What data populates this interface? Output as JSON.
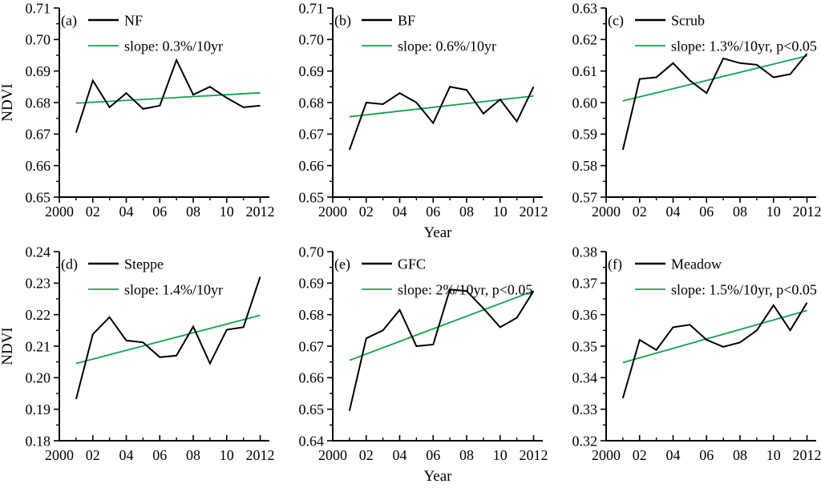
{
  "figure": {
    "ylabel": "NDVI",
    "xlabel": "Year",
    "x_years": [
      2001,
      2002,
      2003,
      2004,
      2005,
      2006,
      2007,
      2008,
      2009,
      2010,
      2011,
      2012
    ],
    "xlim": [
      2000,
      2012.55
    ],
    "xtick_values": [
      2000,
      2002,
      2004,
      2006,
      2008,
      2010,
      2012
    ],
    "xtick_labels": [
      "2000",
      "02",
      "04",
      "06",
      "08",
      "10",
      "2012"
    ],
    "x_minor_ticks": [
      2001,
      2003,
      2005,
      2007,
      2009,
      2011
    ],
    "colors": {
      "series_line": "#000000",
      "trend_line": "#12a24e",
      "axis": "#000000",
      "background": "#ffffff"
    }
  },
  "chart_data": [
    {
      "type": "line",
      "panel_label": "(a)",
      "series_name": "NF",
      "slope_label": "slope: 0.3%/10yr",
      "x": [
        2001,
        2002,
        2003,
        2004,
        2005,
        2006,
        2007,
        2008,
        2009,
        2010,
        2011,
        2012
      ],
      "values": [
        0.6705,
        0.687,
        0.6785,
        0.683,
        0.678,
        0.679,
        0.6935,
        0.6825,
        0.685,
        0.6815,
        0.6785,
        0.679
      ],
      "trend": {
        "x_start": 2001,
        "x_end": 2012,
        "y_start": 0.6798,
        "y_end": 0.6831
      },
      "ylim": [
        0.65,
        0.71
      ],
      "ytick_step": 0.01,
      "ytick_labels": [
        "0.65",
        "0.66",
        "0.67",
        "0.68",
        "0.69",
        "0.70",
        "0.71"
      ]
    },
    {
      "type": "line",
      "panel_label": "(b)",
      "series_name": "BF",
      "slope_label": "slope: 0.6%/10yr",
      "x": [
        2001,
        2002,
        2003,
        2004,
        2005,
        2006,
        2007,
        2008,
        2009,
        2010,
        2011,
        2012
      ],
      "values": [
        0.665,
        0.68,
        0.6795,
        0.683,
        0.68,
        0.6735,
        0.685,
        0.684,
        0.6765,
        0.681,
        0.674,
        0.685
      ],
      "trend": {
        "x_start": 2001,
        "x_end": 2012,
        "y_start": 0.6755,
        "y_end": 0.6821
      },
      "ylim": [
        0.65,
        0.71
      ],
      "ytick_step": 0.01,
      "ytick_labels": [
        "0.65",
        "0.66",
        "0.67",
        "0.68",
        "0.69",
        "0.70",
        "0.71"
      ]
    },
    {
      "type": "line",
      "panel_label": "(c)",
      "series_name": "Scrub",
      "slope_label": "slope: 1.3%/10yr, p<0.05",
      "x": [
        2001,
        2002,
        2003,
        2004,
        2005,
        2006,
        2007,
        2008,
        2009,
        2010,
        2011,
        2012
      ],
      "values": [
        0.585,
        0.6075,
        0.608,
        0.6125,
        0.607,
        0.603,
        0.614,
        0.6125,
        0.612,
        0.608,
        0.609,
        0.6155
      ],
      "trend": {
        "x_start": 2001,
        "x_end": 2012,
        "y_start": 0.6005,
        "y_end": 0.6148
      },
      "ylim": [
        0.57,
        0.63
      ],
      "ytick_step": 0.01,
      "ytick_labels": [
        "0.57",
        "0.58",
        "0.59",
        "0.60",
        "0.61",
        "0.62",
        "0.63"
      ]
    },
    {
      "type": "line",
      "panel_label": "(d)",
      "series_name": "Steppe",
      "slope_label": "slope: 1.4%/10yr",
      "x": [
        2001,
        2002,
        2003,
        2004,
        2005,
        2006,
        2007,
        2008,
        2009,
        2010,
        2011,
        2012
      ],
      "values": [
        0.1932,
        0.2138,
        0.2192,
        0.2118,
        0.2112,
        0.2065,
        0.207,
        0.2162,
        0.2045,
        0.2152,
        0.216,
        0.232
      ],
      "trend": {
        "x_start": 2001,
        "x_end": 2012,
        "y_start": 0.2045,
        "y_end": 0.2198
      },
      "ylim": [
        0.18,
        0.24
      ],
      "ytick_step": 0.01,
      "ytick_labels": [
        "0.18",
        "0.19",
        "0.20",
        "0.21",
        "0.22",
        "0.23",
        "0.24"
      ]
    },
    {
      "type": "line",
      "panel_label": "(e)",
      "series_name": "GFC",
      "slope_label": "slope: 2%/10yr, p<0.05",
      "x": [
        2001,
        2002,
        2003,
        2004,
        2005,
        2006,
        2007,
        2008,
        2009,
        2010,
        2011,
        2012
      ],
      "values": [
        0.6495,
        0.6725,
        0.675,
        0.6815,
        0.67,
        0.6705,
        0.688,
        0.6875,
        0.682,
        0.676,
        0.679,
        0.6875
      ],
      "trend": {
        "x_start": 2001,
        "x_end": 2012,
        "y_start": 0.6655,
        "y_end": 0.6875
      },
      "ylim": [
        0.64,
        0.7
      ],
      "ytick_step": 0.01,
      "ytick_labels": [
        "0.64",
        "0.65",
        "0.66",
        "0.67",
        "0.68",
        "0.69",
        "0.70"
      ]
    },
    {
      "type": "line",
      "panel_label": "(f)",
      "series_name": "Meadow",
      "slope_label": "slope: 1.5%/10yr, p<0.05",
      "x": [
        2001,
        2002,
        2003,
        2004,
        2005,
        2006,
        2007,
        2008,
        2009,
        2010,
        2011,
        2012
      ],
      "values": [
        0.3335,
        0.352,
        0.3488,
        0.356,
        0.3568,
        0.352,
        0.3498,
        0.3512,
        0.355,
        0.363,
        0.355,
        0.3638
      ],
      "trend": {
        "x_start": 2001,
        "x_end": 2012,
        "y_start": 0.3448,
        "y_end": 0.3613
      },
      "ylim": [
        0.32,
        0.38
      ],
      "ytick_step": 0.01,
      "ytick_labels": [
        "0.32",
        "0.33",
        "0.34",
        "0.35",
        "0.36",
        "0.37",
        "0.38"
      ]
    }
  ]
}
